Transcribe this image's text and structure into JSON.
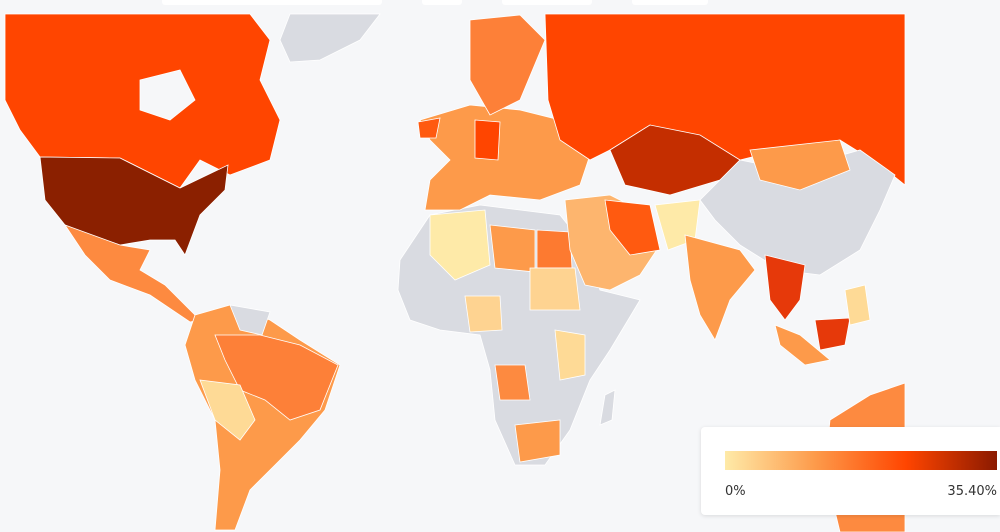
{
  "legend": {
    "min_label": "0%",
    "max_label": "35.40%",
    "colors": [
      "#feeaa8",
      "#fd9a4a",
      "#ff4500",
      "#8b1a00"
    ]
  }
}
